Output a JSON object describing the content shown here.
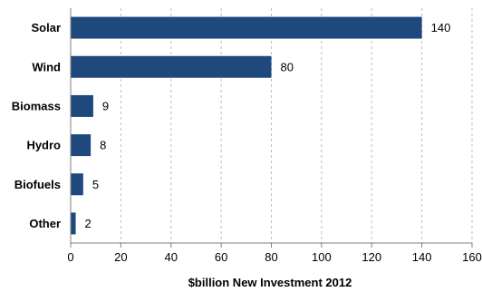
{
  "chart_data": {
    "type": "bar",
    "orientation": "horizontal",
    "categories": [
      "Solar",
      "Wind",
      "Biomass",
      "Hydro",
      "Biofuels",
      "Other"
    ],
    "values": [
      140,
      80,
      9,
      8,
      5,
      2
    ],
    "value_labels": [
      "140",
      "80",
      "9",
      "8",
      "5",
      "2"
    ],
    "xlabel": "$billion New Investment 2012",
    "xlim": [
      0,
      160
    ],
    "xticks": [
      0,
      20,
      40,
      60,
      80,
      100,
      120,
      140,
      160
    ],
    "xtick_labels": [
      "0",
      "20",
      "40",
      "60",
      "80",
      "100",
      "120",
      "140",
      "160"
    ],
    "grid": "vertical-dashed",
    "bar_color": "#1F497D"
  }
}
